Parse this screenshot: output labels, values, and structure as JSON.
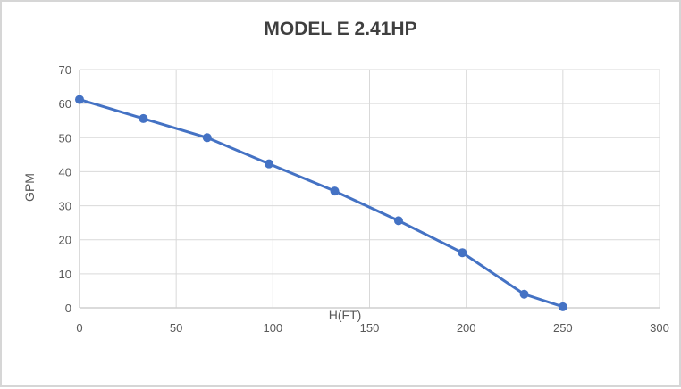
{
  "chart_data": {
    "type": "line",
    "title": "MODEL E 2.41HP",
    "xlabel": "H(FT)",
    "ylabel": "GPM",
    "x": [
      0,
      33,
      66,
      98,
      132,
      165,
      198,
      230,
      250
    ],
    "y": [
      61.2,
      55.6,
      50,
      42.3,
      34.3,
      25.6,
      16.2,
      4,
      0.3
    ],
    "xlim": [
      0,
      300
    ],
    "ylim": [
      0,
      70
    ],
    "x_ticks": [
      0,
      50,
      100,
      150,
      200,
      250,
      300
    ],
    "y_ticks": [
      0,
      10,
      20,
      30,
      40,
      50,
      60,
      70
    ],
    "grid": "both",
    "legend": "none",
    "marker": "circle",
    "colors": {
      "series": "#4472C4",
      "gridline": "#D9D9D9",
      "axis": "#CFCFCF",
      "title": "#3F3F3F",
      "tick": "#595959",
      "background": "#FFFFFF",
      "border": "#D6D6D6"
    }
  }
}
